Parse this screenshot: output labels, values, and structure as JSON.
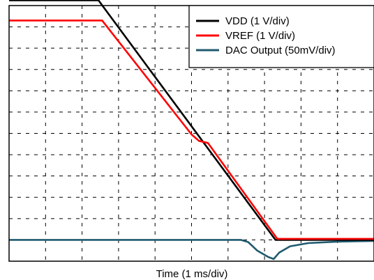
{
  "chart_data": {
    "type": "line",
    "xlabel": "Time (1 ms/div)",
    "ylabel": "",
    "x_divisions": 10,
    "y_divisions": 12,
    "xlim": [
      0,
      10
    ],
    "ylim": [
      0,
      12
    ],
    "grid": true,
    "legend_position": "top-right",
    "series": [
      {
        "name": "VDD (1 V/div)",
        "color": "#000000",
        "x": [
          0,
          2.45,
          7.3,
          10
        ],
        "y": [
          12.25,
          12.25,
          1.0,
          1.0
        ]
      },
      {
        "name": "VREF (1 V/div)",
        "color": "#ff0000",
        "x": [
          0,
          2.55,
          5.0,
          5.2,
          5.45,
          7.35,
          10
        ],
        "y": [
          11.3,
          11.3,
          5.95,
          5.65,
          5.55,
          1.05,
          1.05
        ]
      },
      {
        "name": "DAC Output (50mV/div)",
        "color": "#1f5a6e",
        "x": [
          0,
          6.35,
          6.55,
          6.8,
          7.1,
          7.25,
          7.4,
          7.7,
          8.2,
          9.0,
          10
        ],
        "y": [
          1.0,
          1.0,
          0.9,
          0.5,
          0.2,
          0.1,
          0.4,
          0.7,
          0.85,
          0.92,
          0.95
        ]
      }
    ]
  }
}
